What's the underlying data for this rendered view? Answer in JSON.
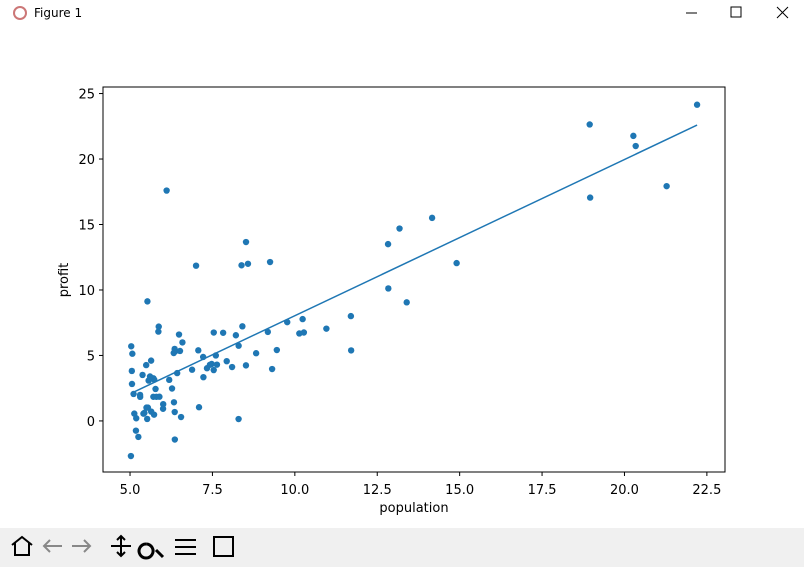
{
  "window": {
    "title": "Figure 1"
  },
  "chart_data": {
    "type": "scatter",
    "xlabel": "population",
    "ylabel": "profit",
    "xlim": [
      4.18,
      23.05
    ],
    "ylim": [
      -3.9,
      25.5
    ],
    "xticks": [
      {
        "value": 5,
        "label": "5.0"
      },
      7.5,
      {
        "value": 10,
        "label": "10.0"
      },
      12.5,
      {
        "value": 15,
        "label": "15.0"
      },
      17.5,
      {
        "value": 20,
        "label": "20.0"
      },
      22.5
    ],
    "yticks": [
      0,
      5,
      10,
      15,
      20,
      25
    ],
    "series": [
      {
        "mode": "markers",
        "color": "#1f77b4",
        "x": [
          6.1101,
          5.5277,
          8.5186,
          7.0032,
          5.8598,
          8.3829,
          7.4764,
          8.5781,
          6.4862,
          5.0546,
          5.7107,
          14.164,
          5.734,
          8.4084,
          5.6407,
          5.3794,
          6.3654,
          5.1301,
          6.4296,
          7.0708,
          6.1891,
          20.27,
          5.4901,
          6.3261,
          5.5649,
          18.945,
          12.828,
          10.957,
          13.176,
          22.203,
          5.2524,
          6.5894,
          9.2482,
          5.8918,
          8.2111,
          7.9334,
          8.0959,
          5.6063,
          12.836,
          6.3534,
          5.4069,
          6.8825,
          11.708,
          5.7737,
          7.8247,
          7.0931,
          5.0702,
          5.8014,
          11.7,
          5.5416,
          7.5402,
          5.3077,
          7.4239,
          7.6031,
          6.3328,
          6.3589,
          6.2742,
          5.6397,
          9.3102,
          9.4536,
          8.8254,
          5.1793,
          21.279,
          14.908,
          18.959,
          7.2182,
          8.2951,
          10.236,
          5.4994,
          20.341,
          10.136,
          7.3345,
          6.0062,
          7.2259,
          5.0269,
          6.5479,
          7.5386,
          5.0365,
          10.274,
          5.1077,
          5.7292,
          5.1884,
          6.3557,
          9.7687,
          6.5159,
          8.5172,
          9.1802,
          6.002,
          5.5204,
          5.0594,
          5.7077,
          7.6366,
          5.8707,
          5.3054,
          8.2934,
          13.394,
          5.4369
        ],
        "values": [
          17.592,
          9.1302,
          13.662,
          11.854,
          6.8233,
          11.886,
          4.3483,
          12,
          6.5987,
          3.8166,
          3.2522,
          15.505,
          3.1551,
          7.2258,
          0.71618,
          3.5129,
          5.3048,
          0.56077,
          3.6518,
          5.3893,
          3.1386,
          21.767,
          4.263,
          5.1875,
          3.0825,
          22.638,
          13.501,
          7.0467,
          14.692,
          24.147,
          -1.22,
          5.9966,
          12.134,
          1.8495,
          6.5426,
          4.5623,
          4.1164,
          3.3928,
          10.117,
          5.4974,
          0.55657,
          3.9115,
          5.3854,
          2.4406,
          6.7318,
          1.0463,
          5.1337,
          1.844,
          8.0043,
          1.0179,
          6.7504,
          1.8396,
          4.2885,
          4.9981,
          1.4233,
          -1.4211,
          2.4756,
          4.6042,
          3.9624,
          5.4141,
          5.1694,
          -0.74279,
          17.929,
          12.054,
          17.054,
          4.8852,
          5.7442,
          7.7754,
          1.0173,
          20.992,
          6.6799,
          4.0259,
          1.2784,
          3.3411,
          -2.6807,
          0.29678,
          3.8845,
          5.7014,
          6.7526,
          2.0576,
          0.47953,
          0.20421,
          0.67861,
          7.5435,
          5.3436,
          4.2415,
          6.7981,
          0.92695,
          0.152,
          2.8214,
          1.8451,
          4.2959,
          7.2029,
          1.9869,
          0.14454,
          9.0551,
          0.61705
        ]
      },
      {
        "mode": "line",
        "color": "#1f77b4",
        "x": [
          5.0269,
          22.203
        ],
        "values": [
          2.101,
          22.593
        ]
      }
    ]
  }
}
